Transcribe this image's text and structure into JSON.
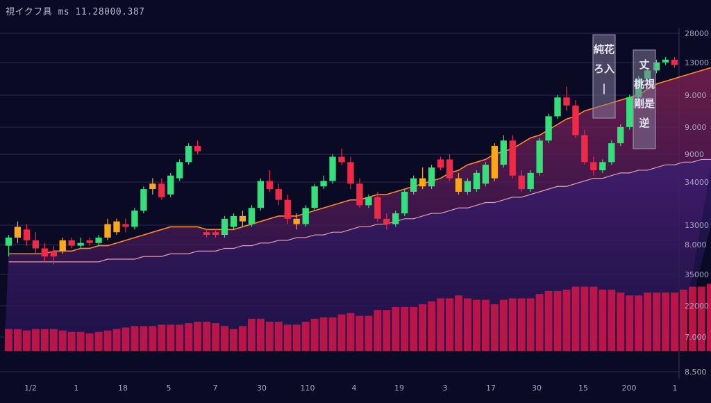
{
  "header": {
    "title": "視イクフ具 ms 11.28000.387"
  },
  "chart_data": {
    "type": "candlestick",
    "title": "視イクフ具 ms 11.28000.387",
    "y_axis_labels": [
      "28000",
      "13000",
      "9.000",
      "9.000",
      "9000",
      "34000",
      "13000",
      "8.000",
      "35000",
      "22000",
      "7.000",
      "8.500"
    ],
    "x_axis_labels": [
      "1/2",
      "1",
      "18",
      "5",
      "7",
      "30",
      "110",
      "4",
      "19",
      "3",
      "17",
      "30",
      "15",
      "200",
      "1"
    ],
    "grid": "horizontal",
    "colors": {
      "up": "#35e07a",
      "down": "#ee2a46",
      "neutral": "#ffa61a",
      "volume": "#c8164a",
      "fill": "#5a1e56",
      "ma_orange": "#ff8a2a",
      "ma_light": "#e0a0b0"
    },
    "candles": [
      {
        "o": 0.3,
        "h": 0.34,
        "l": 0.26,
        "c": 0.33,
        "dir": "up"
      },
      {
        "o": 0.33,
        "h": 0.39,
        "l": 0.31,
        "c": 0.37,
        "dir": "neutral"
      },
      {
        "o": 0.36,
        "h": 0.38,
        "l": 0.3,
        "c": 0.32,
        "dir": "down"
      },
      {
        "o": 0.32,
        "h": 0.35,
        "l": 0.27,
        "c": 0.29,
        "dir": "down"
      },
      {
        "o": 0.29,
        "h": 0.31,
        "l": 0.24,
        "c": 0.26,
        "dir": "down"
      },
      {
        "o": 0.26,
        "h": 0.3,
        "l": 0.23,
        "c": 0.28,
        "dir": "down"
      },
      {
        "o": 0.28,
        "h": 0.33,
        "l": 0.27,
        "c": 0.32,
        "dir": "neutral"
      },
      {
        "o": 0.32,
        "h": 0.33,
        "l": 0.29,
        "c": 0.3,
        "dir": "down"
      },
      {
        "o": 0.3,
        "h": 0.33,
        "l": 0.29,
        "c": 0.31,
        "dir": "up"
      },
      {
        "o": 0.31,
        "h": 0.33,
        "l": 0.3,
        "c": 0.32,
        "dir": "down"
      },
      {
        "o": 0.31,
        "h": 0.34,
        "l": 0.3,
        "c": 0.33,
        "dir": "up"
      },
      {
        "o": 0.33,
        "h": 0.4,
        "l": 0.32,
        "c": 0.38,
        "dir": "neutral"
      },
      {
        "o": 0.35,
        "h": 0.4,
        "l": 0.34,
        "c": 0.39,
        "dir": "neutral"
      },
      {
        "o": 0.37,
        "h": 0.4,
        "l": 0.35,
        "c": 0.38,
        "dir": "down"
      },
      {
        "o": 0.37,
        "h": 0.44,
        "l": 0.36,
        "c": 0.43,
        "dir": "up"
      },
      {
        "o": 0.43,
        "h": 0.52,
        "l": 0.42,
        "c": 0.51,
        "dir": "up"
      },
      {
        "o": 0.51,
        "h": 0.55,
        "l": 0.49,
        "c": 0.53,
        "dir": "neutral"
      },
      {
        "o": 0.53,
        "h": 0.55,
        "l": 0.47,
        "c": 0.48,
        "dir": "down"
      },
      {
        "o": 0.49,
        "h": 0.57,
        "l": 0.48,
        "c": 0.56,
        "dir": "up"
      },
      {
        "o": 0.55,
        "h": 0.62,
        "l": 0.54,
        "c": 0.61,
        "dir": "up"
      },
      {
        "o": 0.61,
        "h": 0.68,
        "l": 0.6,
        "c": 0.67,
        "dir": "up"
      },
      {
        "o": 0.67,
        "h": 0.69,
        "l": 0.64,
        "c": 0.65,
        "dir": "down"
      },
      {
        "o": 0.35,
        "h": 0.36,
        "l": 0.33,
        "c": 0.34,
        "dir": "down"
      },
      {
        "o": 0.34,
        "h": 0.36,
        "l": 0.33,
        "c": 0.35,
        "dir": "down"
      },
      {
        "o": 0.34,
        "h": 0.41,
        "l": 0.33,
        "c": 0.4,
        "dir": "up"
      },
      {
        "o": 0.37,
        "h": 0.42,
        "l": 0.36,
        "c": 0.41,
        "dir": "up"
      },
      {
        "o": 0.39,
        "h": 0.43,
        "l": 0.37,
        "c": 0.41,
        "dir": "neutral"
      },
      {
        "o": 0.38,
        "h": 0.45,
        "l": 0.37,
        "c": 0.44,
        "dir": "up"
      },
      {
        "o": 0.44,
        "h": 0.55,
        "l": 0.43,
        "c": 0.54,
        "dir": "up"
      },
      {
        "o": 0.54,
        "h": 0.58,
        "l": 0.5,
        "c": 0.51,
        "dir": "down"
      },
      {
        "o": 0.51,
        "h": 0.53,
        "l": 0.45,
        "c": 0.47,
        "dir": "down"
      },
      {
        "o": 0.47,
        "h": 0.49,
        "l": 0.38,
        "c": 0.4,
        "dir": "down"
      },
      {
        "o": 0.4,
        "h": 0.42,
        "l": 0.36,
        "c": 0.38,
        "dir": "neutral"
      },
      {
        "o": 0.38,
        "h": 0.45,
        "l": 0.37,
        "c": 0.44,
        "dir": "up"
      },
      {
        "o": 0.44,
        "h": 0.53,
        "l": 0.43,
        "c": 0.52,
        "dir": "up"
      },
      {
        "o": 0.52,
        "h": 0.56,
        "l": 0.51,
        "c": 0.54,
        "dir": "up"
      },
      {
        "o": 0.54,
        "h": 0.64,
        "l": 0.53,
        "c": 0.63,
        "dir": "up"
      },
      {
        "o": 0.63,
        "h": 0.66,
        "l": 0.6,
        "c": 0.61,
        "dir": "down"
      },
      {
        "o": 0.61,
        "h": 0.63,
        "l": 0.51,
        "c": 0.53,
        "dir": "down"
      },
      {
        "o": 0.53,
        "h": 0.55,
        "l": 0.44,
        "c": 0.45,
        "dir": "down"
      },
      {
        "o": 0.45,
        "h": 0.49,
        "l": 0.44,
        "c": 0.48,
        "dir": "up"
      },
      {
        "o": 0.48,
        "h": 0.5,
        "l": 0.39,
        "c": 0.4,
        "dir": "down"
      },
      {
        "o": 0.4,
        "h": 0.42,
        "l": 0.36,
        "c": 0.38,
        "dir": "down"
      },
      {
        "o": 0.38,
        "h": 0.43,
        "l": 0.37,
        "c": 0.42,
        "dir": "up"
      },
      {
        "o": 0.42,
        "h": 0.51,
        "l": 0.41,
        "c": 0.5,
        "dir": "up"
      },
      {
        "o": 0.5,
        "h": 0.56,
        "l": 0.49,
        "c": 0.55,
        "dir": "up"
      },
      {
        "o": 0.55,
        "h": 0.59,
        "l": 0.51,
        "c": 0.52,
        "dir": "neutral"
      },
      {
        "o": 0.52,
        "h": 0.6,
        "l": 0.51,
        "c": 0.59,
        "dir": "up"
      },
      {
        "o": 0.59,
        "h": 0.63,
        "l": 0.58,
        "c": 0.62,
        "dir": "down"
      },
      {
        "o": 0.62,
        "h": 0.64,
        "l": 0.54,
        "c": 0.55,
        "dir": "down"
      },
      {
        "o": 0.55,
        "h": 0.57,
        "l": 0.49,
        "c": 0.5,
        "dir": "neutral"
      },
      {
        "o": 0.5,
        "h": 0.55,
        "l": 0.49,
        "c": 0.54,
        "dir": "up"
      },
      {
        "o": 0.51,
        "h": 0.58,
        "l": 0.5,
        "c": 0.57,
        "dir": "up"
      },
      {
        "o": 0.53,
        "h": 0.61,
        "l": 0.52,
        "c": 0.6,
        "dir": "up"
      },
      {
        "o": 0.55,
        "h": 0.68,
        "l": 0.54,
        "c": 0.67,
        "dir": "neutral"
      },
      {
        "o": 0.6,
        "h": 0.71,
        "l": 0.59,
        "c": 0.69,
        "dir": "up"
      },
      {
        "o": 0.69,
        "h": 0.71,
        "l": 0.55,
        "c": 0.56,
        "dir": "down"
      },
      {
        "o": 0.56,
        "h": 0.58,
        "l": 0.5,
        "c": 0.51,
        "dir": "down"
      },
      {
        "o": 0.51,
        "h": 0.58,
        "l": 0.5,
        "c": 0.57,
        "dir": "up"
      },
      {
        "o": 0.57,
        "h": 0.7,
        "l": 0.56,
        "c": 0.69,
        "dir": "up"
      },
      {
        "o": 0.69,
        "h": 0.79,
        "l": 0.68,
        "c": 0.78,
        "dir": "up"
      },
      {
        "o": 0.78,
        "h": 0.86,
        "l": 0.77,
        "c": 0.85,
        "dir": "up"
      },
      {
        "o": 0.85,
        "h": 0.89,
        "l": 0.8,
        "c": 0.82,
        "dir": "down"
      },
      {
        "o": 0.82,
        "h": 0.84,
        "l": 0.7,
        "c": 0.71,
        "dir": "down"
      },
      {
        "o": 0.71,
        "h": 0.73,
        "l": 0.6,
        "c": 0.61,
        "dir": "down"
      },
      {
        "o": 0.61,
        "h": 0.63,
        "l": 0.56,
        "c": 0.58,
        "dir": "down"
      },
      {
        "o": 0.58,
        "h": 0.62,
        "l": 0.57,
        "c": 0.61,
        "dir": "up"
      },
      {
        "o": 0.61,
        "h": 0.69,
        "l": 0.6,
        "c": 0.68,
        "dir": "up"
      },
      {
        "o": 0.68,
        "h": 0.75,
        "l": 0.67,
        "c": 0.74,
        "dir": "up"
      },
      {
        "o": 0.74,
        "h": 0.86,
        "l": 0.73,
        "c": 0.85,
        "dir": "up"
      },
      {
        "o": 0.85,
        "h": 0.93,
        "l": 0.84,
        "c": 0.92,
        "dir": "up"
      },
      {
        "o": 0.92,
        "h": 0.96,
        "l": 0.91,
        "c": 0.95,
        "dir": "up"
      },
      {
        "o": 0.95,
        "h": 0.99,
        "l": 0.94,
        "c": 0.98,
        "dir": "up"
      },
      {
        "o": 0.98,
        "h": 1.0,
        "l": 0.97,
        "c": 0.99,
        "dir": "up"
      },
      {
        "o": 0.99,
        "h": 1.0,
        "l": 0.96,
        "c": 0.97,
        "dir": "down"
      }
    ],
    "volume": [
      0.3,
      0.3,
      0.28,
      0.3,
      0.3,
      0.3,
      0.28,
      0.26,
      0.26,
      0.24,
      0.26,
      0.28,
      0.3,
      0.32,
      0.34,
      0.34,
      0.34,
      0.36,
      0.36,
      0.36,
      0.38,
      0.4,
      0.4,
      0.38,
      0.34,
      0.3,
      0.34,
      0.44,
      0.44,
      0.4,
      0.4,
      0.36,
      0.36,
      0.4,
      0.44,
      0.46,
      0.46,
      0.5,
      0.52,
      0.48,
      0.48,
      0.56,
      0.56,
      0.6,
      0.6,
      0.6,
      0.64,
      0.68,
      0.72,
      0.72,
      0.76,
      0.72,
      0.7,
      0.7,
      0.64,
      0.7,
      0.72,
      0.72,
      0.72,
      0.78,
      0.82,
      0.82,
      0.84,
      0.88,
      0.88,
      0.88,
      0.84,
      0.84,
      0.8,
      0.76,
      0.76,
      0.8,
      0.8,
      0.8,
      0.8,
      0.84,
      0.88,
      0.88,
      0.92,
      0.92,
      0.92
    ],
    "ma_fast": [
      0.27,
      0.27,
      0.27,
      0.27,
      0.27,
      0.28,
      0.28,
      0.28,
      0.29,
      0.29,
      0.3,
      0.3,
      0.31,
      0.32,
      0.33,
      0.34,
      0.35,
      0.36,
      0.37,
      0.37,
      0.37,
      0.37,
      0.36,
      0.36,
      0.36,
      0.36,
      0.37,
      0.38,
      0.39,
      0.4,
      0.41,
      0.41,
      0.41,
      0.42,
      0.43,
      0.44,
      0.45,
      0.46,
      0.47,
      0.47,
      0.48,
      0.49,
      0.49,
      0.5,
      0.51,
      0.52,
      0.53,
      0.54,
      0.55,
      0.57,
      0.58,
      0.6,
      0.61,
      0.62,
      0.64,
      0.65,
      0.66,
      0.68,
      0.7,
      0.71,
      0.73,
      0.75,
      0.77,
      0.78,
      0.8,
      0.81,
      0.82,
      0.83,
      0.84,
      0.85,
      0.86,
      0.88,
      0.9,
      0.91,
      0.92,
      0.93,
      0.94,
      0.95,
      0.96,
      0.96,
      0.97
    ],
    "ma_slow": [
      0.24,
      0.24,
      0.24,
      0.24,
      0.24,
      0.24,
      0.24,
      0.24,
      0.24,
      0.24,
      0.24,
      0.25,
      0.25,
      0.25,
      0.25,
      0.26,
      0.26,
      0.26,
      0.27,
      0.27,
      0.27,
      0.28,
      0.28,
      0.28,
      0.29,
      0.29,
      0.3,
      0.3,
      0.31,
      0.31,
      0.32,
      0.32,
      0.33,
      0.33,
      0.34,
      0.34,
      0.35,
      0.35,
      0.36,
      0.37,
      0.37,
      0.38,
      0.38,
      0.39,
      0.4,
      0.4,
      0.41,
      0.42,
      0.42,
      0.43,
      0.44,
      0.44,
      0.45,
      0.46,
      0.46,
      0.47,
      0.48,
      0.48,
      0.49,
      0.5,
      0.51,
      0.52,
      0.52,
      0.53,
      0.54,
      0.55,
      0.55,
      0.56,
      0.57,
      0.57,
      0.58,
      0.58,
      0.59,
      0.6,
      0.6,
      0.61,
      0.61,
      0.62,
      0.62,
      0.63,
      0.63
    ],
    "annotations": [
      {
        "lines": [
          "純花",
          "ろ入",
          "|"
        ]
      },
      {
        "lines": [
          "丈",
          "桃視",
          "剛是",
          "逆"
        ]
      }
    ]
  }
}
